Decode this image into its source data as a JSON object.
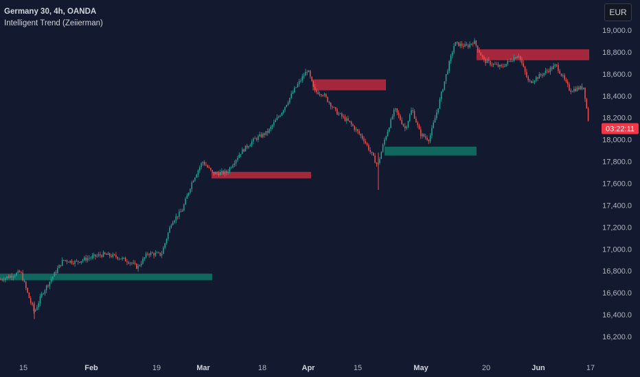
{
  "legend": {
    "symbol": "Germany 30, 4h, OANDA",
    "indicator": "Intelligent Trend (Zeiierman)"
  },
  "currency_button": "EUR",
  "colors": {
    "background": "#131a2f",
    "up": "#26a69a",
    "down": "#ef5350",
    "resistance_zone": "#b2283e",
    "support_zone": "#0f6b60",
    "countdown_bg": "#f23645"
  },
  "chart_data": {
    "type": "candlestick",
    "title": "Germany 30, 4h, OANDA",
    "indicator": "Intelligent Trend (Zeiierman)",
    "currency": "EUR",
    "ylim": [
      16050,
      19150
    ],
    "y_ticks": [
      "19,000.0",
      "18,800.0",
      "18,600.0",
      "18,400.0",
      "18,200.0",
      "18,000.0",
      "17,800.0",
      "17,600.0",
      "17,400.0",
      "17,200.0",
      "17,000.0",
      "16,800.0",
      "16,600.0",
      "16,400.0",
      "16,200.0"
    ],
    "x_ticks": [
      {
        "label": "15",
        "bold": false
      },
      {
        "label": "Feb",
        "bold": true
      },
      {
        "label": "19",
        "bold": false
      },
      {
        "label": "Mar",
        "bold": true
      },
      {
        "label": "18",
        "bold": false
      },
      {
        "label": "Apr",
        "bold": true
      },
      {
        "label": "15",
        "bold": false
      },
      {
        "label": "May",
        "bold": true
      },
      {
        "label": "20",
        "bold": false
      },
      {
        "label": "Jun",
        "bold": true
      },
      {
        "label": "17",
        "bold": false
      }
    ],
    "price_trajectory": [
      [
        0,
        16720
      ],
      [
        18,
        16760
      ],
      [
        30,
        16790
      ],
      [
        42,
        16560
      ],
      [
        50,
        16420
      ],
      [
        62,
        16600
      ],
      [
        80,
        16780
      ],
      [
        92,
        16900
      ],
      [
        110,
        16880
      ],
      [
        130,
        16920
      ],
      [
        150,
        16950
      ],
      [
        170,
        16930
      ],
      [
        190,
        16880
      ],
      [
        200,
        16830
      ],
      [
        215,
        16960
      ],
      [
        235,
        16950
      ],
      [
        250,
        17250
      ],
      [
        265,
        17350
      ],
      [
        280,
        17620
      ],
      [
        295,
        17800
      ],
      [
        310,
        17690
      ],
      [
        330,
        17700
      ],
      [
        350,
        17880
      ],
      [
        370,
        18000
      ],
      [
        390,
        18070
      ],
      [
        410,
        18250
      ],
      [
        430,
        18470
      ],
      [
        448,
        18640
      ],
      [
        458,
        18440
      ],
      [
        470,
        18420
      ],
      [
        490,
        18250
      ],
      [
        510,
        18150
      ],
      [
        530,
        18000
      ],
      [
        550,
        17760
      ],
      [
        560,
        18000
      ],
      [
        575,
        18280
      ],
      [
        590,
        18100
      ],
      [
        600,
        18280
      ],
      [
        612,
        18050
      ],
      [
        625,
        18000
      ],
      [
        638,
        18300
      ],
      [
        650,
        18600
      ],
      [
        662,
        18880
      ],
      [
        680,
        18850
      ],
      [
        690,
        18900
      ],
      [
        705,
        18720
      ],
      [
        730,
        18660
      ],
      [
        755,
        18780
      ],
      [
        770,
        18520
      ],
      [
        790,
        18600
      ],
      [
        810,
        18680
      ],
      [
        830,
        18450
      ],
      [
        850,
        18480
      ],
      [
        858,
        18120
      ]
    ],
    "zones": [
      {
        "kind": "resistance",
        "y_high": 18550,
        "y_low": 18450,
        "x_start_label": "Apr"
      },
      {
        "kind": "resistance",
        "y_high": 17705,
        "y_low": 17645,
        "x_start_label": "Mar"
      },
      {
        "kind": "resistance",
        "y_high": 18825,
        "y_low": 18725,
        "x_start_label": "May"
      },
      {
        "kind": "support",
        "y_high": 17935,
        "y_low": 17855,
        "x_start_label": "15"
      },
      {
        "kind": "support",
        "y_high": 16775,
        "y_low": 16715,
        "x_start_label": "15"
      }
    ],
    "last_price_label": "03:22:11",
    "last_price": 18100
  }
}
